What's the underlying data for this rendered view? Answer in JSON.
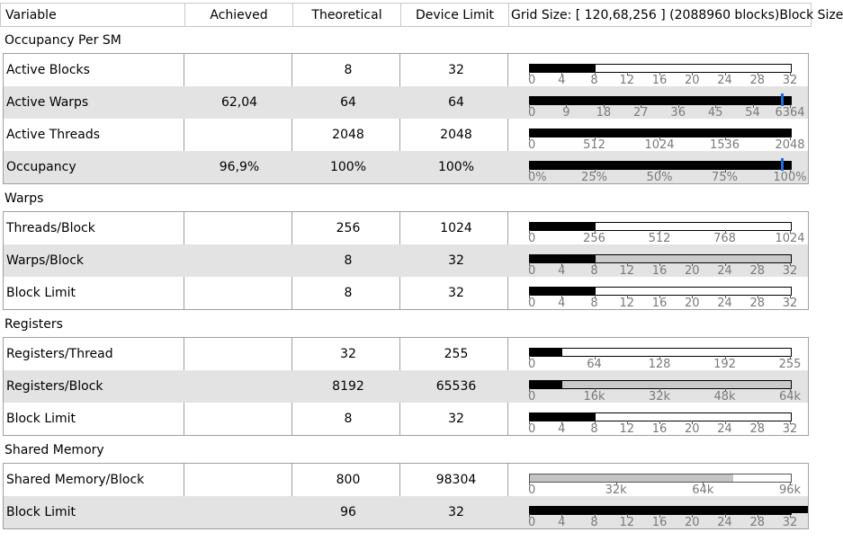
{
  "header": {
    "variable": "Variable",
    "achieved": "Achieved",
    "theoretical": "Theoretical",
    "device_limit": "Device Limit",
    "grid_size": "Grid Size: [ 120,68,256 ] (2088960 blocks)Block Size"
  },
  "sections": [
    {
      "title": "Occupancy Per SM",
      "rows": [
        {
          "name": "Active Blocks",
          "achieved": "",
          "theoretical": "8",
          "device_limit": "32",
          "bar": {
            "fill": 0.25,
            "ticks": [
              "0",
              "4",
              "8",
              "12",
              "16",
              "20",
              "24",
              "28",
              "32"
            ],
            "style": "white"
          }
        },
        {
          "name": "Active Warps",
          "achieved": "62,04",
          "theoretical": "64",
          "device_limit": "64",
          "bar": {
            "fill": 1.0,
            "marker": 0.969,
            "ticks": [
              "0",
              "9",
              "18",
              "27",
              "36",
              "45",
              "54",
              "6364"
            ],
            "style": "white"
          }
        },
        {
          "name": "Active Threads",
          "achieved": "",
          "theoretical": "2048",
          "device_limit": "2048",
          "bar": {
            "fill": 1.0,
            "ticks": [
              "0",
              "512",
              "1024",
              "1536",
              "2048"
            ],
            "style": "white"
          }
        },
        {
          "name": "Occupancy",
          "achieved": "96,9%",
          "theoretical": "100%",
          "device_limit": "100%",
          "bar": {
            "fill": 1.0,
            "marker": 0.969,
            "ticks": [
              "0%",
              "25%",
              "50%",
              "75%",
              "100%"
            ],
            "style": "white"
          }
        }
      ]
    },
    {
      "title": "Warps",
      "rows": [
        {
          "name": "Threads/Block",
          "achieved": "",
          "theoretical": "256",
          "device_limit": "1024",
          "bar": {
            "fill": 0.25,
            "ticks": [
              "0",
              "256",
              "512",
              "768",
              "1024"
            ],
            "style": "white"
          }
        },
        {
          "name": "Warps/Block",
          "achieved": "",
          "theoretical": "8",
          "device_limit": "32",
          "bar": {
            "fill": 0.25,
            "ticks": [
              "0",
              "4",
              "8",
              "12",
              "16",
              "20",
              "24",
              "28",
              "32"
            ],
            "style": "gray"
          }
        },
        {
          "name": "Block Limit",
          "achieved": "",
          "theoretical": "8",
          "device_limit": "32",
          "bar": {
            "fill": 0.25,
            "ticks": [
              "0",
              "4",
              "8",
              "12",
              "16",
              "20",
              "24",
              "28",
              "32"
            ],
            "style": "white"
          }
        }
      ]
    },
    {
      "title": "Registers",
      "rows": [
        {
          "name": "Registers/Thread",
          "achieved": "",
          "theoretical": "32",
          "device_limit": "255",
          "bar": {
            "fill": 0.125,
            "ticks": [
              "0",
              "64",
              "128",
              "192",
              "255"
            ],
            "style": "white"
          }
        },
        {
          "name": "Registers/Block",
          "achieved": "",
          "theoretical": "8192",
          "device_limit": "65536",
          "bar": {
            "fill": 0.125,
            "ticks": [
              "0",
              "16k",
              "32k",
              "48k",
              "64k"
            ],
            "style": "gray"
          }
        },
        {
          "name": "Block Limit",
          "achieved": "",
          "theoretical": "8",
          "device_limit": "32",
          "bar": {
            "fill": 0.25,
            "ticks": [
              "0",
              "4",
              "8",
              "12",
              "16",
              "20",
              "24",
              "28",
              "32"
            ],
            "style": "white"
          }
        }
      ]
    },
    {
      "title": "Shared Memory",
      "rows": [
        {
          "name": "Shared Memory/Block",
          "achieved": "",
          "theoretical": "800",
          "device_limit": "98304",
          "bar": {
            "fill": 0.0,
            "gray_fill": 0.78,
            "ticks": [
              "0",
              "32k",
              "64k",
              "96k"
            ],
            "style": "white"
          }
        },
        {
          "name": "Block Limit",
          "achieved": "",
          "theoretical": "96",
          "device_limit": "32",
          "bar": {
            "fill": 1.0,
            "overflow": true,
            "ticks": [
              "0",
              "4",
              "8",
              "12",
              "16",
              "20",
              "24",
              "28",
              "32"
            ],
            "style": "white"
          }
        }
      ]
    }
  ]
}
